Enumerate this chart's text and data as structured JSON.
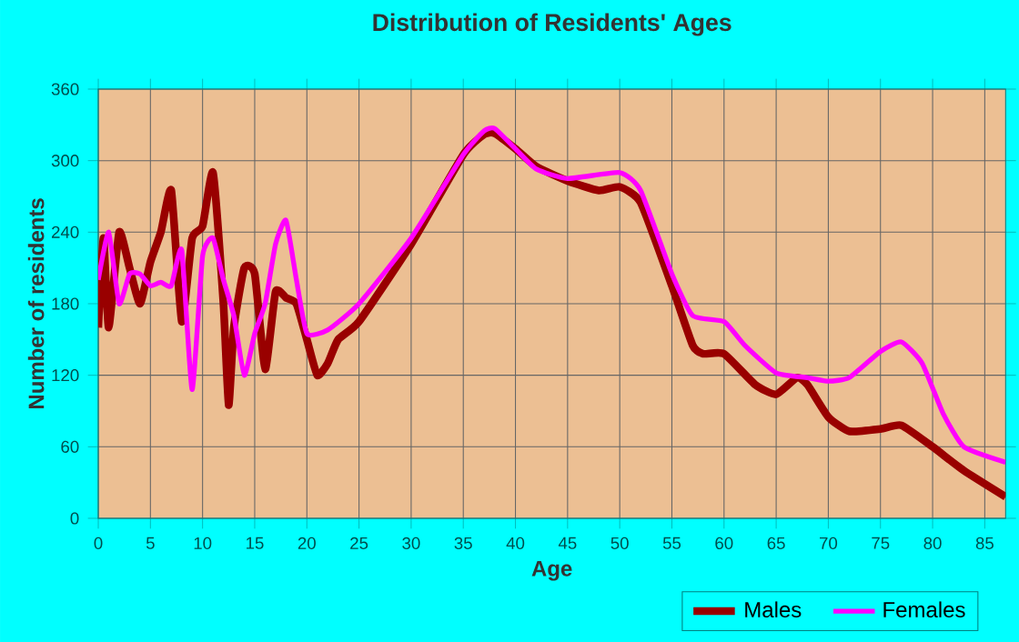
{
  "chart_data": {
    "type": "line",
    "title": "Distribution of Residents' Ages",
    "xlabel": "Age",
    "ylabel": "Number of residents",
    "xlim": [
      0,
      87
    ],
    "ylim": [
      0,
      360
    ],
    "xticks": [
      0,
      5,
      10,
      15,
      20,
      25,
      30,
      35,
      40,
      45,
      50,
      55,
      60,
      65,
      70,
      75,
      80,
      85
    ],
    "yticks": [
      0,
      60,
      120,
      180,
      240,
      300,
      360
    ],
    "grid": true,
    "legend": "bottom",
    "marker": "none",
    "line_style": "solid",
    "series": [
      {
        "name": "Males",
        "color": "#990000",
        "x": [
          0,
          0.5,
          1,
          2,
          3,
          4,
          5,
          6,
          7,
          8,
          9,
          10,
          11,
          12,
          12.5,
          13,
          14,
          15,
          16,
          17,
          18,
          19,
          20,
          21,
          22,
          23,
          25,
          30,
          35,
          37,
          38,
          40,
          42,
          45,
          48,
          50,
          52,
          55,
          57,
          58,
          60,
          63,
          65,
          67,
          68,
          70,
          72,
          75,
          77,
          80,
          83,
          87
        ],
        "values": [
          160,
          235,
          160,
          240,
          210,
          180,
          215,
          240,
          275,
          165,
          235,
          245,
          290,
          180,
          95,
          160,
          210,
          205,
          125,
          190,
          185,
          180,
          150,
          120,
          130,
          150,
          165,
          230,
          305,
          322,
          323,
          310,
          295,
          283,
          275,
          278,
          265,
          195,
          145,
          138,
          138,
          112,
          104,
          118,
          112,
          85,
          73,
          75,
          78,
          60,
          40,
          18
        ]
      },
      {
        "name": "Females",
        "color": "#ff00ff",
        "x": [
          0,
          1,
          2,
          3,
          4,
          5,
          6,
          7,
          8,
          9,
          10,
          11,
          12,
          13,
          14,
          15,
          16,
          17,
          18,
          19,
          20,
          22,
          25,
          30,
          35,
          37,
          38,
          40,
          42,
          45,
          50,
          52,
          55,
          57,
          60,
          62,
          65,
          68,
          70,
          72,
          75,
          77,
          79,
          81,
          83,
          87
        ],
        "values": [
          200,
          240,
          180,
          205,
          205,
          195,
          198,
          195,
          225,
          108,
          220,
          235,
          200,
          170,
          120,
          155,
          180,
          230,
          250,
          200,
          155,
          158,
          180,
          235,
          305,
          325,
          327,
          310,
          293,
          285,
          290,
          275,
          205,
          170,
          165,
          145,
          122,
          118,
          115,
          118,
          140,
          148,
          130,
          88,
          60,
          47
        ]
      }
    ]
  }
}
